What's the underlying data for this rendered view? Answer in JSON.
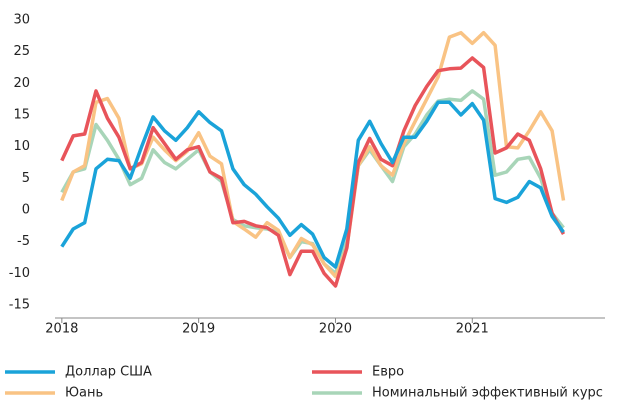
{
  "chart_data": {
    "type": "line",
    "x": [
      2018.0,
      2018.083,
      2018.167,
      2018.25,
      2018.333,
      2018.417,
      2018.5,
      2018.583,
      2018.667,
      2018.75,
      2018.833,
      2018.917,
      2019.0,
      2019.083,
      2019.167,
      2019.25,
      2019.333,
      2019.417,
      2019.5,
      2019.583,
      2019.667,
      2019.75,
      2019.833,
      2019.917,
      2020.0,
      2020.083,
      2020.167,
      2020.25,
      2020.333,
      2020.417,
      2020.5,
      2020.583,
      2020.667,
      2020.75,
      2020.833,
      2020.917,
      2021.0,
      2021.083,
      2021.167,
      2021.25,
      2021.333,
      2021.417,
      2021.5,
      2021.583,
      2021.667
    ],
    "series": [
      {
        "name": "Доллар США",
        "color": "#1aa3d9",
        "values": [
          -5.8,
          -3,
          -2,
          6.5,
          8,
          7.8,
          5,
          10,
          14.7,
          12.5,
          11,
          13,
          15.5,
          13.8,
          12.5,
          6.5,
          4,
          2.5,
          0.5,
          -1.3,
          -4,
          -2.3,
          -3.8,
          -7.5,
          -9,
          -3,
          11,
          14,
          10.5,
          7.5,
          11.5,
          11.5,
          14,
          17,
          17,
          15,
          16.8,
          14.2,
          1.8,
          1.2,
          2,
          4.5,
          3.5,
          -1,
          -3.5
        ]
      },
      {
        "name": "Евро",
        "color": "#e8545a",
        "values": [
          7.8,
          11.7,
          12,
          18.8,
          14.5,
          11.5,
          6.5,
          7.5,
          13,
          10.5,
          8,
          9.5,
          10,
          6,
          5,
          -2,
          -1.8,
          -2.5,
          -2.8,
          -4,
          -10.2,
          -6.5,
          -6.5,
          -10,
          -12,
          -6,
          7.5,
          11.3,
          8,
          7,
          12.5,
          16.5,
          19.5,
          22,
          22.3,
          22.4,
          24,
          22.5,
          9,
          9.8,
          12,
          11,
          6.5,
          -0.5,
          -3.8
        ]
      },
      {
        "name": "Юань",
        "color": "#f9c384",
        "values": [
          1.5,
          6,
          7,
          17,
          17.6,
          14.5,
          6.5,
          7.3,
          11.5,
          9.5,
          7.8,
          9.3,
          12.2,
          8.5,
          7.3,
          -1.8,
          -3,
          -4.3,
          -2,
          -3.2,
          -7.5,
          -4.5,
          -5.5,
          -8.5,
          -10.5,
          -6,
          7,
          10,
          7,
          5.5,
          10.5,
          14,
          17.5,
          21,
          27.3,
          28,
          26.3,
          28,
          26,
          10,
          9.8,
          12.5,
          15.5,
          12.5,
          1.5
        ]
      },
      {
        "name": "Номинальный эффективный курс",
        "color": "#a8d5b8",
        "values": [
          2.8,
          6,
          6.5,
          13.5,
          11,
          8,
          4,
          5,
          9.5,
          7.5,
          6.5,
          8,
          9.5,
          6,
          4.5,
          -1.5,
          -2.5,
          -2.8,
          -3,
          -3.5,
          -7.5,
          -5,
          -5.3,
          -8.5,
          -10,
          -5,
          7,
          9.5,
          7,
          4.5,
          10,
          12,
          15,
          17.2,
          17.5,
          17.3,
          18.8,
          17.5,
          5.5,
          6,
          8,
          8.3,
          5,
          -0.5,
          -2.8
        ]
      }
    ],
    "xlim": [
      2017.95,
      2021.97
    ],
    "xticks": [
      2018,
      2019,
      2020,
      2021
    ],
    "ylim": [
      -15,
      30
    ],
    "yticks": [
      -15,
      -10,
      -5,
      0,
      5,
      10,
      15,
      20,
      25,
      30
    ]
  }
}
